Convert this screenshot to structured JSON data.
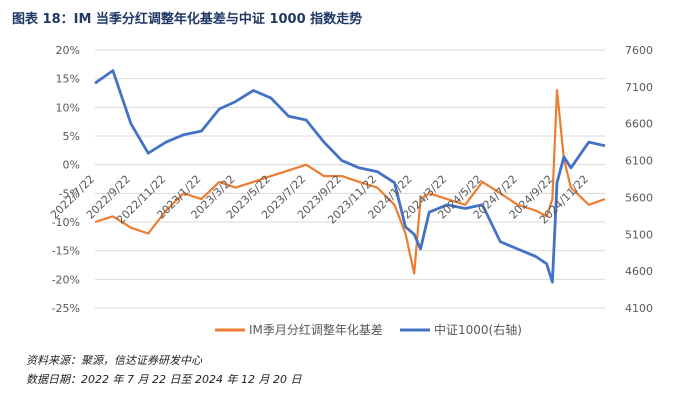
{
  "figure": {
    "title": "图表 18：IM 当季分红调整年化基差与中证 1000 指数走势",
    "source": "资料来源：聚源，信达证券研发中心",
    "date_range": "数据日期：2022 年 7 月 22 日至 2024 年 12 月 20 日"
  },
  "colors": {
    "basis": "#ed7d31",
    "index": "#4472c4",
    "grid": "#d9d9d9"
  },
  "chart_data": {
    "type": "line",
    "title": "",
    "x_tick_labels": [
      "2022/7/22",
      "2022/9/22",
      "2022/11/22",
      "2023/1/22",
      "2023/3/22",
      "2023/5/22",
      "2023/7/22",
      "2023/9/22",
      "2023/11/22",
      "2024/1/22",
      "2024/3/22",
      "2024/5/22",
      "2024/7/22",
      "2024/9/22",
      "2024/11/22"
    ],
    "y_left": {
      "ticks": [
        "20%",
        "15%",
        "10%",
        "5%",
        "0%",
        "-5%",
        "-10%",
        "-15%",
        "-20%",
        "-25%"
      ],
      "min": -25,
      "max": 20
    },
    "y_right": {
      "ticks": [
        "7600",
        "7100",
        "6600",
        "6100",
        "5600",
        "5100",
        "4600",
        "4100"
      ],
      "min": 4100,
      "max": 7600
    },
    "legend_position": "bottom",
    "series": [
      {
        "name": "IM季月分红调整年化基差",
        "axis": "left",
        "x": [
          "2022/7/22",
          "2022/8/22",
          "2022/9/22",
          "2022/10/22",
          "2022/11/22",
          "2022/12/22",
          "2023/1/22",
          "2023/2/22",
          "2023/3/22",
          "2023/4/22",
          "2023/5/22",
          "2023/6/22",
          "2023/7/22",
          "2023/8/22",
          "2023/9/22",
          "2023/10/22",
          "2023/11/22",
          "2023/12/22",
          "2024/1/10",
          "2024/1/25",
          "2024/2/5",
          "2024/2/20",
          "2024/3/22",
          "2024/4/22",
          "2024/5/22",
          "2024/6/22",
          "2024/7/22",
          "2024/8/22",
          "2024/9/10",
          "2024/9/20",
          "2024/9/28",
          "2024/10/10",
          "2024/10/22",
          "2024/11/22",
          "2024/12/20"
        ],
        "values": [
          -10,
          -9,
          -11,
          -12,
          -8,
          -5,
          -6,
          -3,
          -4,
          -3,
          -2,
          -1,
          0,
          -2,
          -2,
          -3,
          -4,
          -7,
          -12,
          -19,
          -6,
          -5,
          -6,
          -7,
          -3,
          -5,
          -7,
          -8,
          -9,
          -6,
          13,
          1,
          -4,
          -7,
          -6
        ]
      },
      {
        "name": "中证1000(右轴)",
        "axis": "right",
        "x": [
          "2022/7/22",
          "2022/8/22",
          "2022/9/22",
          "2022/10/22",
          "2022/11/22",
          "2022/12/22",
          "2023/1/22",
          "2023/2/22",
          "2023/3/22",
          "2023/4/22",
          "2023/5/22",
          "2023/6/22",
          "2023/7/22",
          "2023/8/22",
          "2023/9/22",
          "2023/10/22",
          "2023/11/22",
          "2023/12/22",
          "2024/1/10",
          "2024/1/25",
          "2024/2/5",
          "2024/2/20",
          "2024/3/22",
          "2024/4/22",
          "2024/5/22",
          "2024/6/22",
          "2024/7/22",
          "2024/8/22",
          "2024/9/10",
          "2024/9/20",
          "2024/9/28",
          "2024/10/10",
          "2024/10/22",
          "2024/11/22",
          "2024/12/20"
        ],
        "values": [
          7150,
          7320,
          6600,
          6200,
          6350,
          6450,
          6500,
          6800,
          6900,
          7050,
          6950,
          6700,
          6650,
          6350,
          6100,
          6000,
          5950,
          5800,
          5200,
          5100,
          4900,
          5400,
          5500,
          5450,
          5500,
          5000,
          4900,
          4800,
          4700,
          4450,
          5800,
          6150,
          6000,
          6350,
          6300
        ]
      }
    ]
  }
}
